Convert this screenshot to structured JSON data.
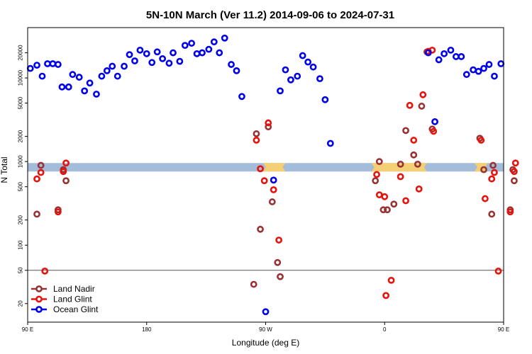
{
  "chart_data": {
    "type": "scatter",
    "title": "5N-10N March (Ver 11.2)   2014-09-06 to 2024-07-31",
    "xlabel": "Longitude (deg E)",
    "ylabel": "N Total",
    "xscale": "longitude-shifted (90E to 90E + 360)",
    "yscale": "log",
    "xlim": [
      90,
      450
    ],
    "ylim": [
      12,
      40000
    ],
    "x_ticks": [
      {
        "value": 90,
        "label": "90 E"
      },
      {
        "value": 180,
        "label": "180"
      },
      {
        "value": 270,
        "label": "90 W"
      },
      {
        "value": 360,
        "label": "0"
      },
      {
        "value": 450,
        "label": "90 E"
      },
      {
        "value": 540,
        "label": "180"
      }
    ],
    "y_ticks": [
      {
        "value": 20,
        "label": "20"
      },
      {
        "value": 50,
        "label": "50"
      },
      {
        "value": 100,
        "label": "100"
      },
      {
        "value": 200,
        "label": "200"
      },
      {
        "value": 500,
        "label": "500"
      },
      {
        "value": 1000,
        "label": "1000"
      },
      {
        "value": 2000,
        "label": "2000"
      },
      {
        "value": 5000,
        "label": "5000"
      },
      {
        "value": 10000,
        "label": "10000"
      },
      {
        "value": 20000,
        "label": "20000"
      }
    ],
    "reference_line": 50,
    "band": {
      "ymin": 760,
      "ymax": 960,
      "color": "#a3bcd9",
      "land_color": "#f5cf73"
    },
    "legend_position": "bottom-left",
    "series": [
      {
        "name": "Land Nadir",
        "color": "#993333",
        "points": [
          {
            "x": 97,
            "y": 235
          },
          {
            "x": 100,
            "y": 900
          },
          {
            "x": 113,
            "y": 265
          },
          {
            "x": 117,
            "y": 800
          },
          {
            "x": 119,
            "y": 590
          },
          {
            "x": 261,
            "y": 34
          },
          {
            "x": 263,
            "y": 2150
          },
          {
            "x": 266,
            "y": 155
          },
          {
            "x": 272,
            "y": 2600
          },
          {
            "x": 275,
            "y": 330
          },
          {
            "x": 279,
            "y": 62
          },
          {
            "x": 281,
            "y": 42
          },
          {
            "x": 353,
            "y": 590
          },
          {
            "x": 356,
            "y": 1000
          },
          {
            "x": 359,
            "y": 265
          },
          {
            "x": 362,
            "y": 265
          },
          {
            "x": 367,
            "y": 310
          },
          {
            "x": 372,
            "y": 930
          },
          {
            "x": 376,
            "y": 2350
          },
          {
            "x": 382,
            "y": 1200
          },
          {
            "x": 385,
            "y": 930
          },
          {
            "x": 388,
            "y": 4600
          },
          {
            "x": 392,
            "y": 20500
          },
          {
            "x": 396,
            "y": 2450
          },
          {
            "x": 432,
            "y": 1900
          },
          {
            "x": 435,
            "y": 800
          },
          {
            "x": 441,
            "y": 235
          },
          {
            "x": 442,
            "y": 900
          },
          {
            "x": 455,
            "y": 265
          },
          {
            "x": 457,
            "y": 800
          },
          {
            "x": 458,
            "y": 590
          }
        ]
      },
      {
        "name": "Land Glint",
        "color": "#e8120c",
        "points": [
          {
            "x": 97,
            "y": 620
          },
          {
            "x": 100,
            "y": 740
          },
          {
            "x": 103,
            "y": 49
          },
          {
            "x": 113,
            "y": 250
          },
          {
            "x": 117,
            "y": 760
          },
          {
            "x": 119,
            "y": 960
          },
          {
            "x": 263,
            "y": 1800
          },
          {
            "x": 266,
            "y": 820
          },
          {
            "x": 269,
            "y": 590
          },
          {
            "x": 272,
            "y": 2900
          },
          {
            "x": 276,
            "y": 460
          },
          {
            "x": 280,
            "y": 115
          },
          {
            "x": 354,
            "y": 700
          },
          {
            "x": 356,
            "y": 400
          },
          {
            "x": 360,
            "y": 380
          },
          {
            "x": 361,
            "y": 25
          },
          {
            "x": 365,
            "y": 38
          },
          {
            "x": 372,
            "y": 660
          },
          {
            "x": 376,
            "y": 340
          },
          {
            "x": 379,
            "y": 4700
          },
          {
            "x": 382,
            "y": 1800
          },
          {
            "x": 386,
            "y": 470
          },
          {
            "x": 389,
            "y": 6300
          },
          {
            "x": 393,
            "y": 20800
          },
          {
            "x": 396,
            "y": 21500
          },
          {
            "x": 397,
            "y": 2300
          },
          {
            "x": 433,
            "y": 1800
          },
          {
            "x": 436,
            "y": 360
          },
          {
            "x": 441,
            "y": 620
          },
          {
            "x": 443,
            "y": 740
          },
          {
            "x": 446,
            "y": 49
          },
          {
            "x": 455,
            "y": 250
          },
          {
            "x": 458,
            "y": 760
          },
          {
            "x": 459,
            "y": 960
          }
        ]
      },
      {
        "name": "Ocean Glint",
        "color": "#0000ee",
        "points": [
          {
            "x": 92,
            "y": 13000
          },
          {
            "x": 97,
            "y": 14200
          },
          {
            "x": 101,
            "y": 10500
          },
          {
            "x": 105,
            "y": 14800
          },
          {
            "x": 109,
            "y": 14800
          },
          {
            "x": 113,
            "y": 14500
          },
          {
            "x": 116,
            "y": 7800
          },
          {
            "x": 121,
            "y": 7800
          },
          {
            "x": 124,
            "y": 11000
          },
          {
            "x": 129,
            "y": 10200
          },
          {
            "x": 133,
            "y": 7000
          },
          {
            "x": 137,
            "y": 8700
          },
          {
            "x": 142,
            "y": 6400
          },
          {
            "x": 146,
            "y": 10500
          },
          {
            "x": 150,
            "y": 12200
          },
          {
            "x": 154,
            "y": 13800
          },
          {
            "x": 158,
            "y": 10500
          },
          {
            "x": 163,
            "y": 13800
          },
          {
            "x": 167,
            "y": 19000
          },
          {
            "x": 171,
            "y": 16000
          },
          {
            "x": 175,
            "y": 21500
          },
          {
            "x": 180,
            "y": 19500
          },
          {
            "x": 184,
            "y": 15300
          },
          {
            "x": 188,
            "y": 20500
          },
          {
            "x": 192,
            "y": 17000
          },
          {
            "x": 197,
            "y": 15000
          },
          {
            "x": 200,
            "y": 20000
          },
          {
            "x": 205,
            "y": 15800
          },
          {
            "x": 209,
            "y": 24500
          },
          {
            "x": 214,
            "y": 26000
          },
          {
            "x": 218,
            "y": 19500
          },
          {
            "x": 222,
            "y": 20000
          },
          {
            "x": 227,
            "y": 22000
          },
          {
            "x": 231,
            "y": 27000
          },
          {
            "x": 235,
            "y": 20000
          },
          {
            "x": 239,
            "y": 30000
          },
          {
            "x": 244,
            "y": 14500
          },
          {
            "x": 248,
            "y": 12200
          },
          {
            "x": 252,
            "y": 6000
          },
          {
            "x": 270,
            "y": 16
          },
          {
            "x": 276,
            "y": 600
          },
          {
            "x": 281,
            "y": 7000
          },
          {
            "x": 285,
            "y": 12500
          },
          {
            "x": 289,
            "y": 9500
          },
          {
            "x": 294,
            "y": 10500
          },
          {
            "x": 298,
            "y": 18500
          },
          {
            "x": 302,
            "y": 15500
          },
          {
            "x": 306,
            "y": 13500
          },
          {
            "x": 311,
            "y": 9800
          },
          {
            "x": 315,
            "y": 5500
          },
          {
            "x": 319,
            "y": 1650
          },
          {
            "x": 393,
            "y": 20000
          },
          {
            "x": 398,
            "y": 3000
          },
          {
            "x": 401,
            "y": 16500
          },
          {
            "x": 405,
            "y": 19500
          },
          {
            "x": 410,
            "y": 21500
          },
          {
            "x": 414,
            "y": 18000
          },
          {
            "x": 418,
            "y": 18000
          },
          {
            "x": 422,
            "y": 11000
          },
          {
            "x": 427,
            "y": 12500
          },
          {
            "x": 431,
            "y": 12000
          },
          {
            "x": 435,
            "y": 13000
          },
          {
            "x": 439,
            "y": 14500
          },
          {
            "x": 443,
            "y": 10500
          },
          {
            "x": 448,
            "y": 14800
          }
        ]
      }
    ]
  }
}
